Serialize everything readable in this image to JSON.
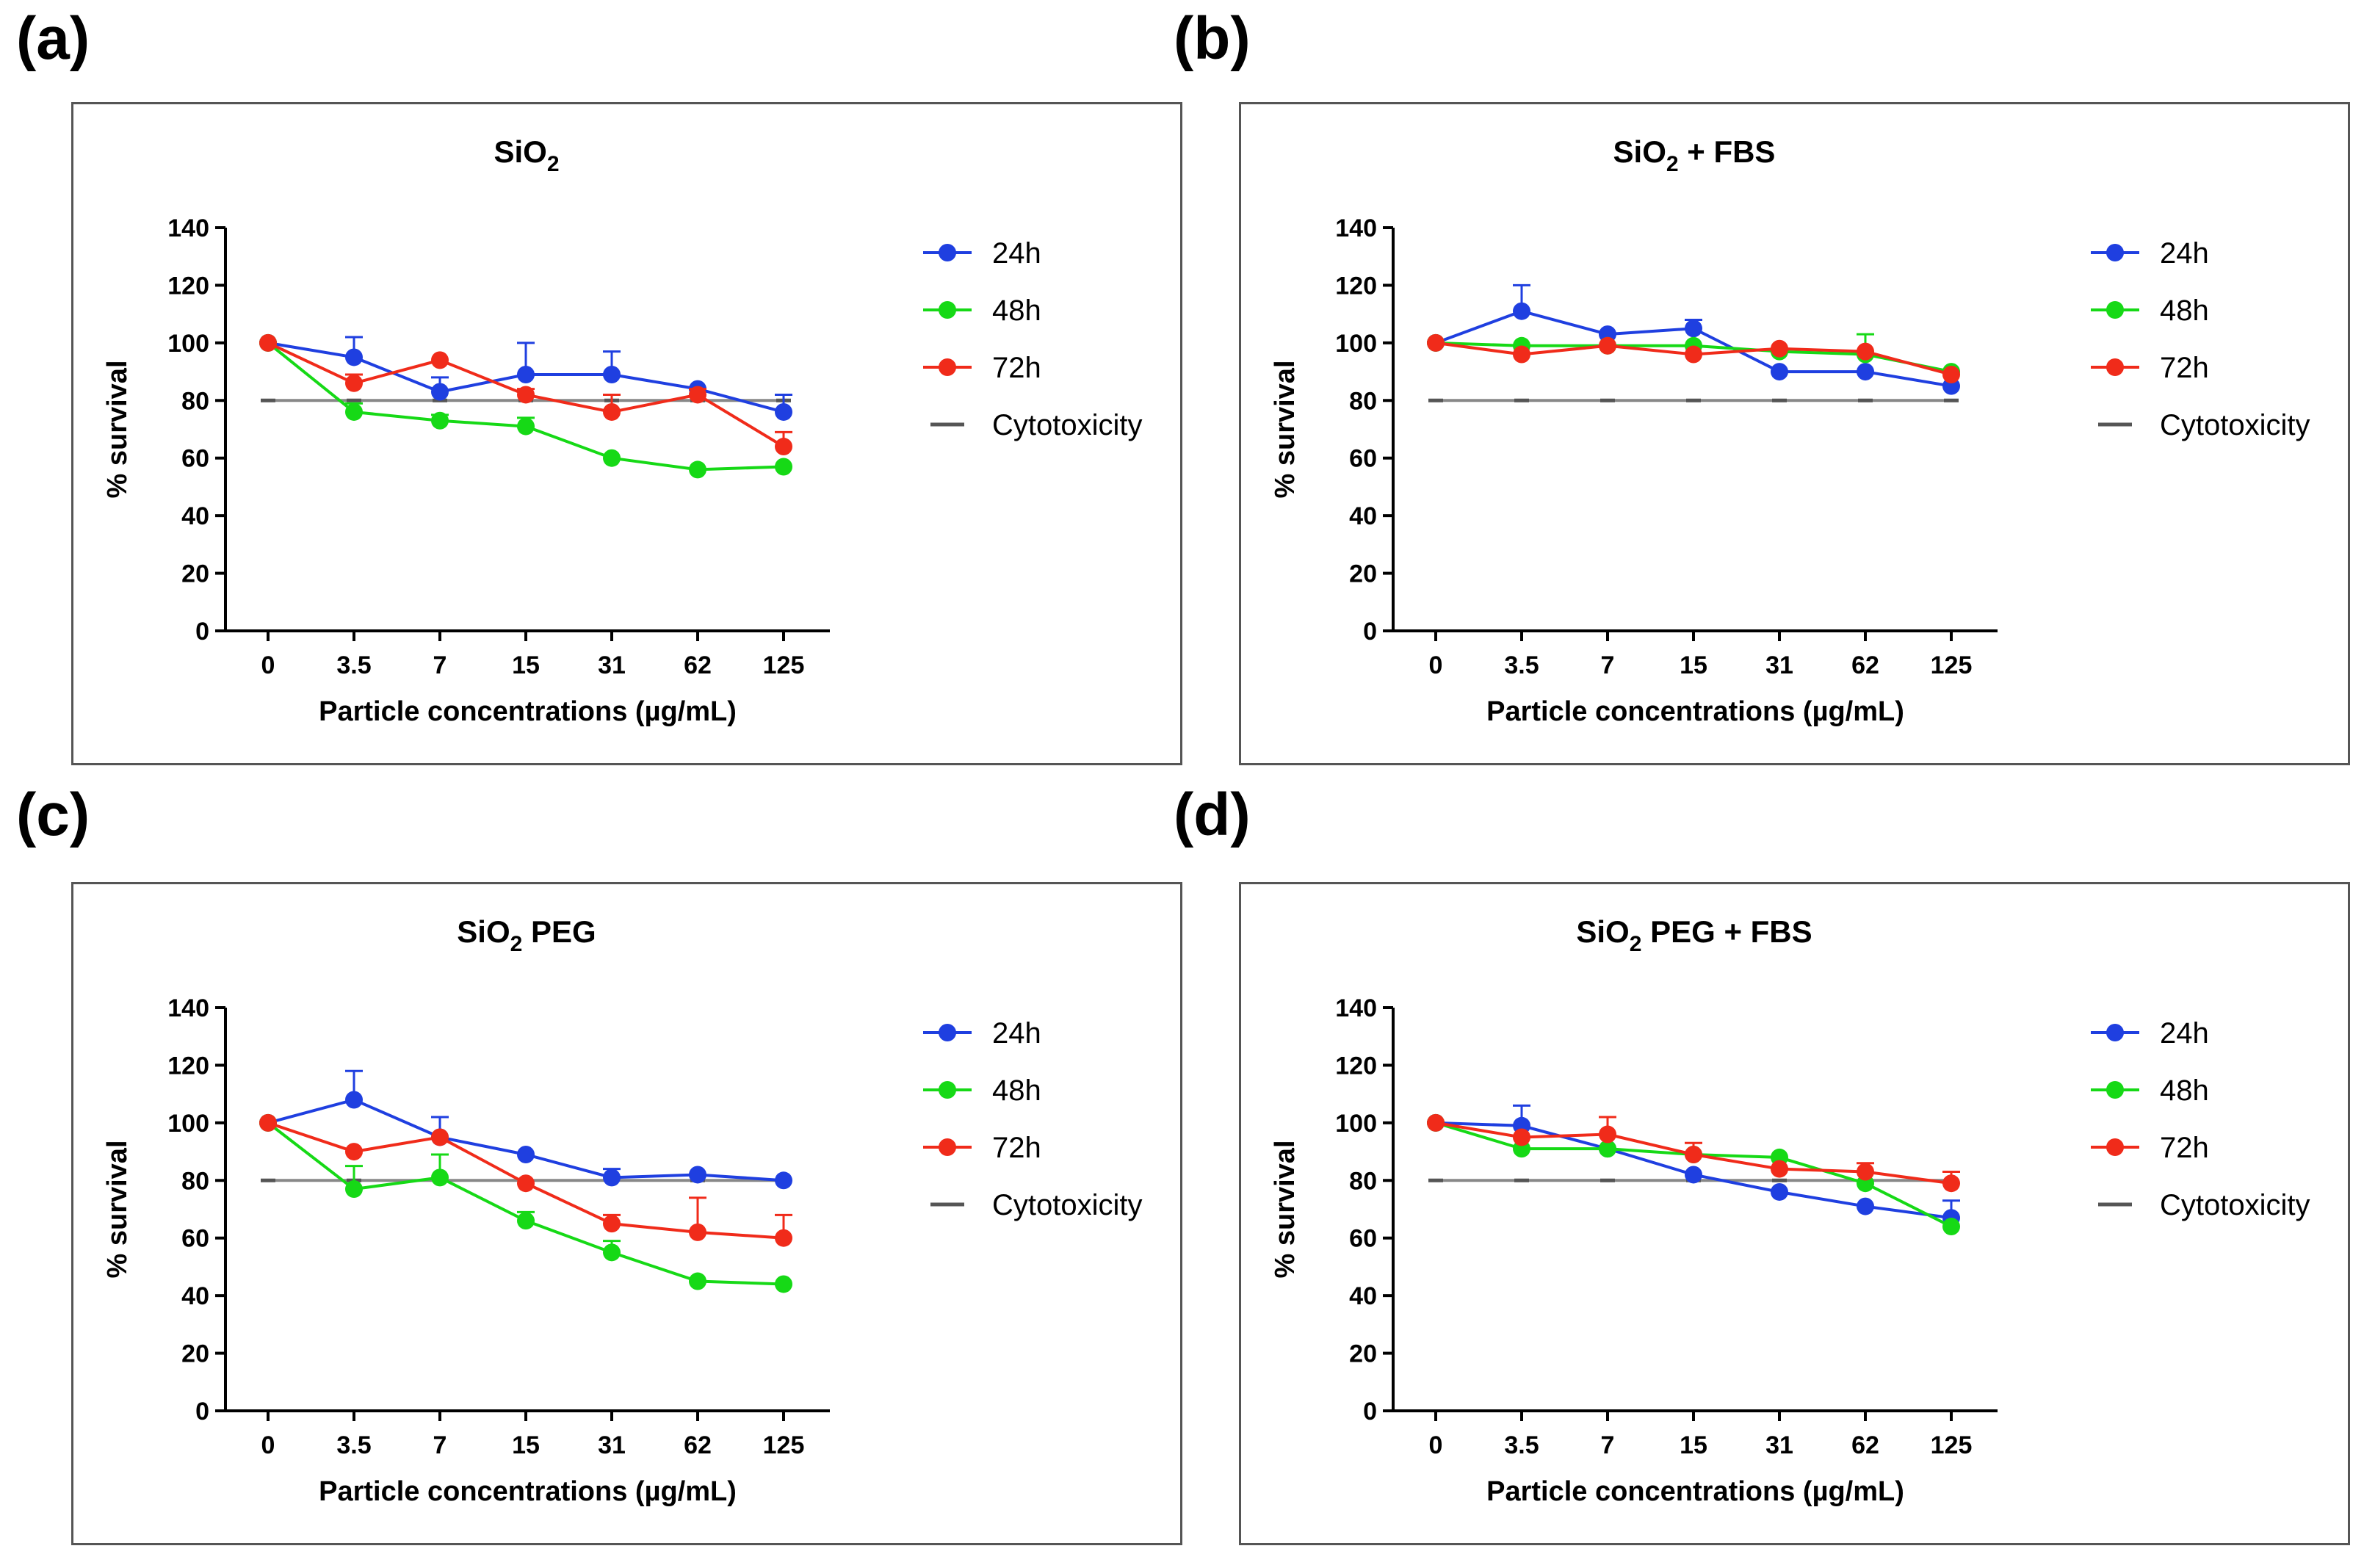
{
  "figure": {
    "panel_labels": [
      "(a)",
      "(b)",
      "(c)",
      "(d)"
    ]
  },
  "chart_data": [
    {
      "type": "line",
      "panel": "(a)",
      "title": "SiO",
      "title_sub": "2",
      "title_suffix": "",
      "xlabel": "Particle concentrations (µg/mL)",
      "ylabel": "% survival",
      "categories": [
        "0",
        "3.5",
        "7",
        "15",
        "31",
        "62",
        "125"
      ],
      "yticks": [
        0,
        20,
        40,
        60,
        80,
        100,
        120,
        140
      ],
      "ylim": [
        0,
        140
      ],
      "reference": {
        "name": "Cytotoxicity",
        "value": 80
      },
      "series": [
        {
          "name": "24h",
          "values": [
            100,
            95,
            83,
            89,
            89,
            84,
            76
          ],
          "errors": [
            0,
            7,
            5,
            11,
            8,
            0,
            6
          ]
        },
        {
          "name": "48h",
          "values": [
            100,
            76,
            73,
            71,
            60,
            56,
            57
          ],
          "errors": [
            0,
            3,
            2,
            3,
            0,
            0,
            0
          ]
        },
        {
          "name": "72h",
          "values": [
            100,
            86,
            94,
            82,
            76,
            82,
            64
          ],
          "errors": [
            0,
            3,
            0,
            2,
            6,
            2,
            5
          ]
        }
      ]
    },
    {
      "type": "line",
      "panel": "(b)",
      "title": "SiO",
      "title_sub": "2",
      "title_suffix": " + FBS",
      "xlabel": "Particle concentrations (µg/mL)",
      "ylabel": "% survival",
      "categories": [
        "0",
        "3.5",
        "7",
        "15",
        "31",
        "62",
        "125"
      ],
      "yticks": [
        0,
        20,
        40,
        60,
        80,
        100,
        120,
        140
      ],
      "ylim": [
        0,
        140
      ],
      "reference": {
        "name": "Cytotoxicity",
        "value": 80
      },
      "series": [
        {
          "name": "24h",
          "values": [
            100,
            111,
            103,
            105,
            90,
            90,
            85
          ],
          "errors": [
            0,
            9,
            0,
            3,
            0,
            0,
            0
          ]
        },
        {
          "name": "48h",
          "values": [
            100,
            99,
            99,
            99,
            97,
            96,
            90
          ],
          "errors": [
            0,
            0,
            0,
            0,
            0,
            7,
            0
          ]
        },
        {
          "name": "72h",
          "values": [
            100,
            96,
            99,
            96,
            98,
            97,
            89
          ],
          "errors": [
            0,
            0,
            0,
            0,
            0,
            0,
            0
          ]
        }
      ]
    },
    {
      "type": "line",
      "panel": "(c)",
      "title": "SiO",
      "title_sub": "2",
      "title_suffix": " PEG",
      "xlabel": "Particle concentrations (µg/mL)",
      "ylabel": "% survival",
      "categories": [
        "0",
        "3.5",
        "7",
        "15",
        "31",
        "62",
        "125"
      ],
      "yticks": [
        0,
        20,
        40,
        60,
        80,
        100,
        120,
        140
      ],
      "ylim": [
        0,
        140
      ],
      "reference": {
        "name": "Cytotoxicity",
        "value": 80
      },
      "series": [
        {
          "name": "24h",
          "values": [
            100,
            108,
            95,
            89,
            81,
            82,
            80
          ],
          "errors": [
            0,
            10,
            7,
            0,
            3,
            0,
            0
          ]
        },
        {
          "name": "48h",
          "values": [
            100,
            77,
            81,
            66,
            55,
            45,
            44
          ],
          "errors": [
            0,
            8,
            8,
            3,
            4,
            0,
            0
          ]
        },
        {
          "name": "72h",
          "values": [
            100,
            90,
            95,
            79,
            65,
            62,
            60
          ],
          "errors": [
            0,
            0,
            0,
            0,
            3,
            12,
            8
          ]
        }
      ]
    },
    {
      "type": "line",
      "panel": "(d)",
      "title": "SiO",
      "title_sub": "2",
      "title_suffix": " PEG + FBS",
      "xlabel": "Particle concentrations (µg/mL)",
      "ylabel": "% survival",
      "categories": [
        "0",
        "3.5",
        "7",
        "15",
        "31",
        "62",
        "125"
      ],
      "yticks": [
        0,
        20,
        40,
        60,
        80,
        100,
        120,
        140
      ],
      "ylim": [
        0,
        140
      ],
      "reference": {
        "name": "Cytotoxicity",
        "value": 80
      },
      "series": [
        {
          "name": "24h",
          "values": [
            100,
            99,
            91,
            82,
            76,
            71,
            67
          ],
          "errors": [
            0,
            7,
            0,
            0,
            0,
            0,
            6
          ]
        },
        {
          "name": "48h",
          "values": [
            100,
            91,
            91,
            89,
            88,
            79,
            64
          ],
          "errors": [
            0,
            0,
            0,
            0,
            0,
            0,
            0
          ]
        },
        {
          "name": "72h",
          "values": [
            100,
            95,
            96,
            89,
            84,
            83,
            79
          ],
          "errors": [
            0,
            0,
            6,
            4,
            0,
            3,
            4
          ]
        }
      ]
    }
  ],
  "colors": {
    "24h": "#1f3fe0",
    "48h": "#16d916",
    "72h": "#f02b1a",
    "Cytotoxicity": "#888888"
  }
}
